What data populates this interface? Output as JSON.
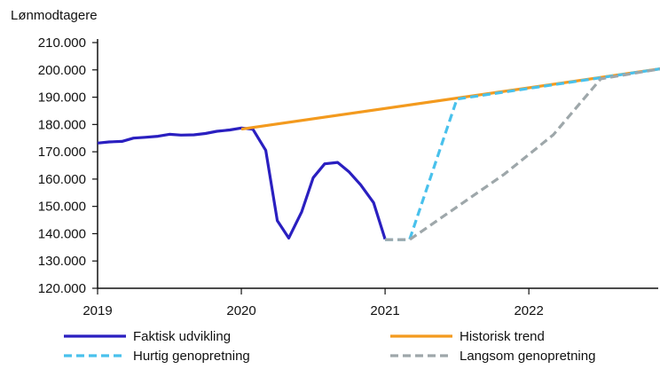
{
  "chart_data": {
    "type": "line",
    "ylabel": "Lønmodtagere",
    "ylim": [
      120000,
      210000
    ],
    "yticks": [
      120000,
      130000,
      140000,
      150000,
      160000,
      170000,
      180000,
      190000,
      200000,
      210000
    ],
    "ytick_labels": [
      "120.000",
      "130.000",
      "140.000",
      "150.000",
      "160.000",
      "170.000",
      "180.000",
      "190.000",
      "200.000",
      "210.000"
    ],
    "xlim": [
      2019.0,
      2022.9
    ],
    "xticks": [
      2019,
      2020,
      2021,
      2022
    ],
    "xtick_labels": [
      "2019",
      "2020",
      "2021",
      "2022"
    ],
    "grid": false,
    "legend_position": "bottom",
    "series": [
      {
        "name": "Faktisk udvikling",
        "color": "#2a1fc0",
        "dash": "solid",
        "points": [
          [
            2019.0,
            173200
          ],
          [
            2019.08,
            173600
          ],
          [
            2019.17,
            173800
          ],
          [
            2019.25,
            175000
          ],
          [
            2019.33,
            175300
          ],
          [
            2019.42,
            175700
          ],
          [
            2019.5,
            176400
          ],
          [
            2019.58,
            176100
          ],
          [
            2019.67,
            176200
          ],
          [
            2019.75,
            176700
          ],
          [
            2019.83,
            177500
          ],
          [
            2019.92,
            178000
          ],
          [
            2020.0,
            178700
          ],
          [
            2020.08,
            178300
          ],
          [
            2020.17,
            170500
          ],
          [
            2020.25,
            144800
          ],
          [
            2020.33,
            138400
          ],
          [
            2020.42,
            148000
          ],
          [
            2020.5,
            160500
          ],
          [
            2020.58,
            165600
          ],
          [
            2020.67,
            166100
          ],
          [
            2020.75,
            162600
          ],
          [
            2020.83,
            157900
          ],
          [
            2020.92,
            151400
          ],
          [
            2021.0,
            138000
          ]
        ]
      },
      {
        "name": "Historisk trend",
        "color": "#f39a1e",
        "dash": "solid",
        "points": [
          [
            2020.0,
            178300
          ],
          [
            2022.92,
            200400
          ]
        ]
      },
      {
        "name": "Hurtig genopretning",
        "color": "#49c1ec",
        "dash": "dashed",
        "points": [
          [
            2021.0,
            137800
          ],
          [
            2021.17,
            137800
          ],
          [
            2021.5,
            189300
          ],
          [
            2022.92,
            200400
          ]
        ]
      },
      {
        "name": "Langsom genopretning",
        "color": "#9ea7aa",
        "dash": "dashed",
        "points": [
          [
            2021.0,
            137800
          ],
          [
            2021.17,
            137800
          ],
          [
            2021.5,
            149800
          ],
          [
            2021.83,
            161800
          ],
          [
            2022.17,
            176200
          ],
          [
            2022.5,
            196700
          ],
          [
            2022.92,
            200400
          ]
        ]
      }
    ]
  }
}
